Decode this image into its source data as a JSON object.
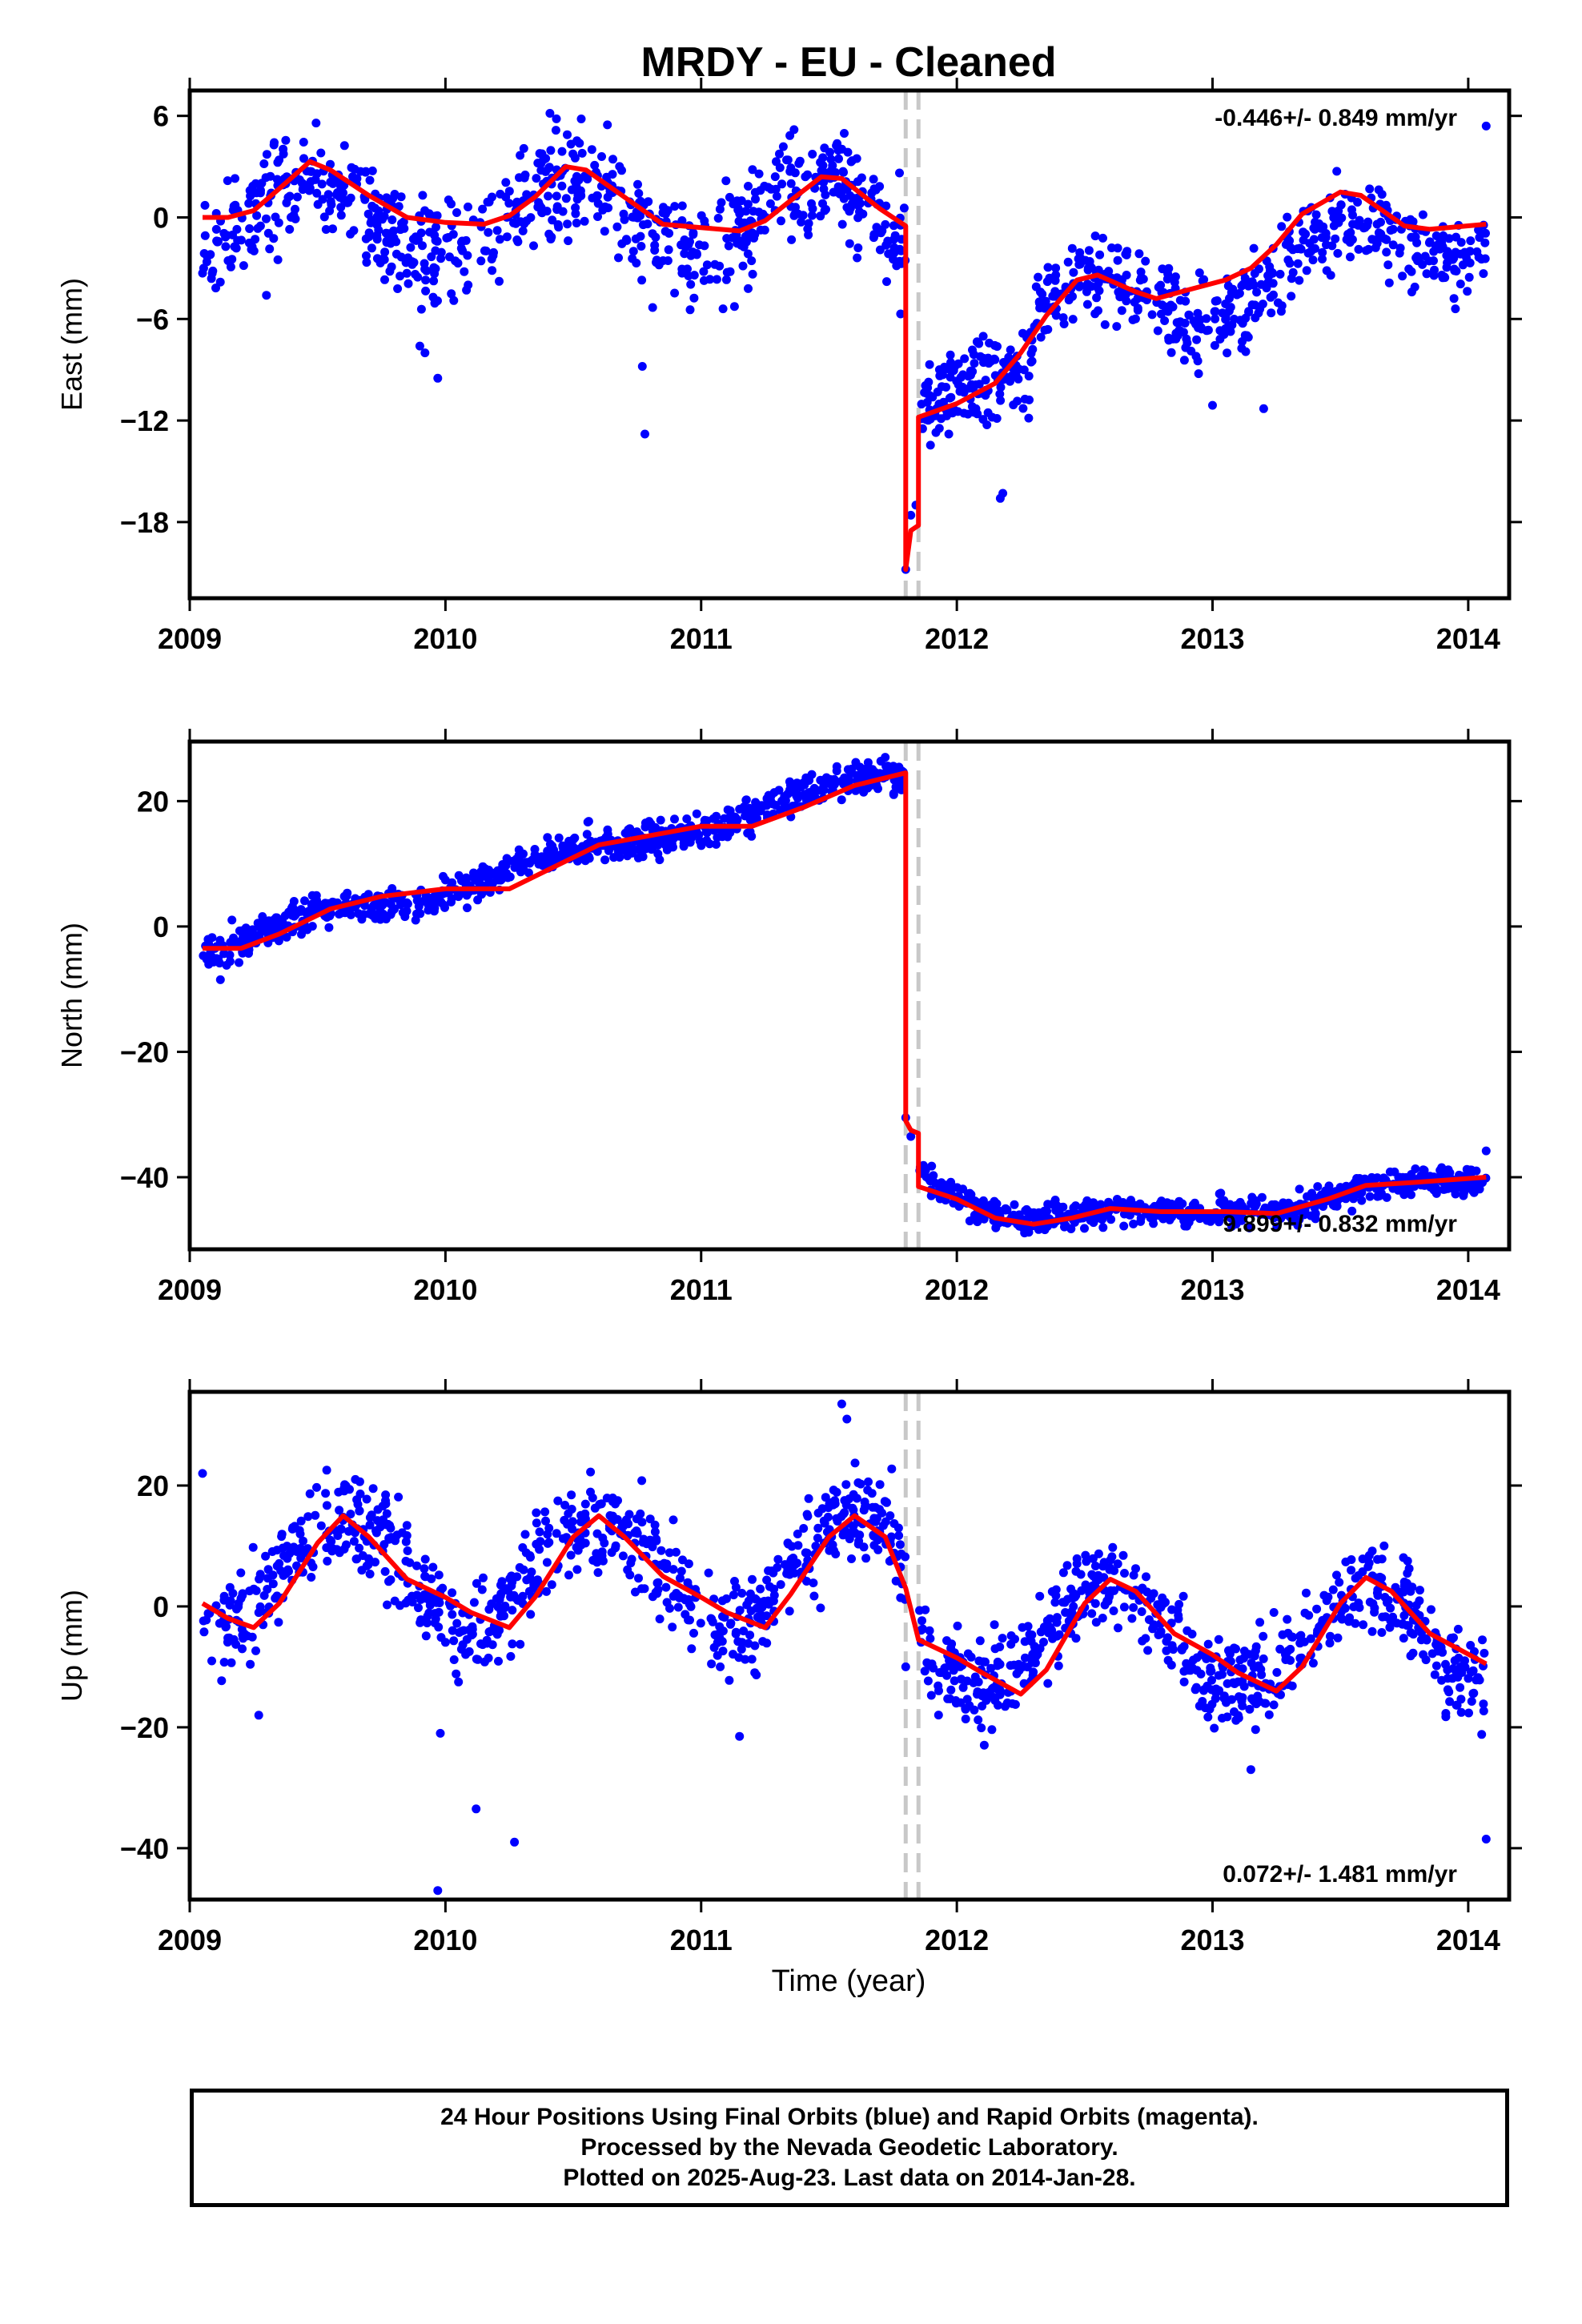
{
  "title": "MRDY  - EU - Cleaned",
  "colors": {
    "final_orbits": "#0000ff",
    "model": "#ff0000",
    "offset_marker": "#c8c8c8",
    "frame": "#000000"
  },
  "xaxis": {
    "label": "Time (year)",
    "range": [
      2009.0,
      2014.16
    ],
    "ticks": [
      2009,
      2010,
      2011,
      2012,
      2013,
      2014
    ]
  },
  "offsets": [
    2011.8,
    2011.85
  ],
  "chart_data": [
    {
      "type": "scatter",
      "name": "east",
      "ylabel": "East (mm)",
      "ylim": [
        -22.5,
        7.5
      ],
      "yticks": [
        6,
        0,
        -6,
        -12,
        -18
      ],
      "rate": "-0.446+/- 0.849 mm/yr",
      "rate_position": "top-right",
      "model": [
        [
          2009.05,
          0
        ],
        [
          2009.15,
          0
        ],
        [
          2009.25,
          0.4
        ],
        [
          2009.35,
          1.7
        ],
        [
          2009.47,
          3.3
        ],
        [
          2009.55,
          2.8
        ],
        [
          2009.7,
          1.3
        ],
        [
          2009.85,
          0
        ],
        [
          2010.0,
          -0.3
        ],
        [
          2010.15,
          -0.4
        ],
        [
          2010.25,
          0.1
        ],
        [
          2010.35,
          1.2
        ],
        [
          2010.47,
          3.0
        ],
        [
          2010.55,
          2.8
        ],
        [
          2010.7,
          1.2
        ],
        [
          2010.85,
          -0.4
        ],
        [
          2011.0,
          -0.6
        ],
        [
          2011.15,
          -0.8
        ],
        [
          2011.25,
          -0.2
        ],
        [
          2011.35,
          1.0
        ],
        [
          2011.47,
          2.4
        ],
        [
          2011.55,
          2.3
        ],
        [
          2011.7,
          0.5
        ],
        [
          2011.8,
          -0.5
        ],
        [
          2011.8,
          -20.8
        ],
        [
          2011.82,
          -18.5
        ],
        [
          2011.85,
          -18.2
        ],
        [
          2011.85,
          -11.8
        ],
        [
          2012.0,
          -11.0
        ],
        [
          2012.15,
          -9.8
        ],
        [
          2012.25,
          -8.0
        ],
        [
          2012.35,
          -5.8
        ],
        [
          2012.47,
          -3.7
        ],
        [
          2012.55,
          -3.4
        ],
        [
          2012.7,
          -4.4
        ],
        [
          2012.78,
          -4.8
        ],
        [
          2012.9,
          -4.3
        ],
        [
          2013.05,
          -3.7
        ],
        [
          2013.15,
          -3.0
        ],
        [
          2013.25,
          -1.6
        ],
        [
          2013.35,
          0.2
        ],
        [
          2013.5,
          1.5
        ],
        [
          2013.58,
          1.3
        ],
        [
          2013.75,
          -0.5
        ],
        [
          2013.85,
          -0.7
        ],
        [
          2014.07,
          -0.4
        ]
      ],
      "segments": [
        {
          "t0": 2009.05,
          "t1": 2011.8,
          "level": 0.0,
          "amp": 2.2,
          "phase": 2009.47,
          "noise": 1.6,
          "n": 760
        },
        {
          "t0": 2011.85,
          "t1": 2012.3,
          "trend": [
            -11.2,
            -8.6
          ],
          "amp": 0,
          "phase": 2012.5,
          "noise": 1.3,
          "n": 150
        },
        {
          "t0": 2012.3,
          "t1": 2014.07,
          "trend": [
            -6.4,
            -0.3
          ],
          "amp": 2.0,
          "phase": 2012.5,
          "noise": 1.2,
          "n": 470
        }
      ],
      "outliers": [
        [
          2009.3,
          -4.6
        ],
        [
          2009.9,
          -7.6
        ],
        [
          2009.92,
          -8.0
        ],
        [
          2009.97,
          -9.5
        ],
        [
          2010.77,
          -8.8
        ],
        [
          2010.78,
          -12.8
        ],
        [
          2011.78,
          -5.7
        ],
        [
          2011.8,
          -20.8
        ],
        [
          2011.82,
          -17.6
        ],
        [
          2011.84,
          -17.0
        ],
        [
          2012.18,
          -16.3
        ],
        [
          2012.17,
          -16.6
        ],
        [
          2013.0,
          -11.1
        ],
        [
          2013.2,
          -11.3
        ],
        [
          2013.95,
          -5.4
        ],
        [
          2014.07,
          5.4
        ]
      ]
    },
    {
      "type": "scatter",
      "name": "north",
      "ylabel": "North (mm)",
      "ylim": [
        -51.5,
        29.5
      ],
      "yticks": [
        20,
        0,
        -20,
        -40
      ],
      "rate": "9.899+/- 0.832 mm/yr",
      "rate_position": "bottom-right",
      "model": [
        [
          2009.05,
          -3.5
        ],
        [
          2009.2,
          -3.5
        ],
        [
          2009.35,
          -1.2
        ],
        [
          2009.55,
          2.8
        ],
        [
          2009.75,
          4.8
        ],
        [
          2010.0,
          6.0
        ],
        [
          2010.25,
          6.0
        ],
        [
          2010.45,
          10.0
        ],
        [
          2010.6,
          13.0
        ],
        [
          2010.8,
          14.5
        ],
        [
          2011.0,
          16.0
        ],
        [
          2011.2,
          16.0
        ],
        [
          2011.4,
          19.0
        ],
        [
          2011.6,
          22.5
        ],
        [
          2011.8,
          24.5
        ],
        [
          2011.8,
          -31.0
        ],
        [
          2011.82,
          -32.5
        ],
        [
          2011.85,
          -33.0
        ],
        [
          2011.85,
          -41.5
        ],
        [
          2012.0,
          -43.5
        ],
        [
          2012.15,
          -46.5
        ],
        [
          2012.3,
          -47.5
        ],
        [
          2012.45,
          -46.5
        ],
        [
          2012.6,
          -45.0
        ],
        [
          2012.8,
          -45.5
        ],
        [
          2013.05,
          -45.5
        ],
        [
          2013.25,
          -45.8
        ],
        [
          2013.45,
          -43.5
        ],
        [
          2013.6,
          -41.3
        ],
        [
          2013.8,
          -40.8
        ],
        [
          2014.07,
          -40.0
        ]
      ],
      "segments": [
        {
          "t0": 2009.05,
          "t1": 2011.8,
          "trend": [
            -3.5,
            24.5
          ],
          "amp": 1.3,
          "phase": 2009.5,
          "noise": 1.3,
          "n": 760
        },
        {
          "t0": 2011.85,
          "t1": 2014.07,
          "curve": [
            [
              2011.85,
              -38.5
            ],
            [
              2012.0,
              -43.5
            ],
            [
              2012.25,
              -47.5
            ],
            [
              2012.55,
              -45.5
            ],
            [
              2013.0,
              -45.5
            ],
            [
              2013.3,
              -45.5
            ],
            [
              2013.6,
              -41.5
            ],
            [
              2014.07,
              -40.5
            ]
          ],
          "amp": 0,
          "phase": 2012.5,
          "noise": 1.1,
          "n": 630
        }
      ],
      "outliers": [
        [
          2009.12,
          -8.5
        ],
        [
          2011.8,
          -30.5
        ],
        [
          2011.82,
          -33.5
        ],
        [
          2014.07,
          -35.8
        ],
        [
          2011.72,
          27.0
        ]
      ]
    },
    {
      "type": "scatter",
      "name": "up",
      "ylabel": "Up (mm)",
      "ylim": [
        -48.5,
        35.5
      ],
      "yticks": [
        20,
        0,
        -20,
        -40
      ],
      "rate": "0.072+/- 1.481 mm/yr",
      "rate_position": "bottom-right",
      "model": [
        [
          2009.05,
          0.5
        ],
        [
          2009.15,
          -2.0
        ],
        [
          2009.25,
          -3.5
        ],
        [
          2009.35,
          0.5
        ],
        [
          2009.5,
          10.5
        ],
        [
          2009.6,
          15.0
        ],
        [
          2009.7,
          11.5
        ],
        [
          2009.85,
          4.5
        ],
        [
          2010.0,
          1.5
        ],
        [
          2010.1,
          -1.0
        ],
        [
          2010.25,
          -3.5
        ],
        [
          2010.35,
          1.5
        ],
        [
          2010.5,
          11.5
        ],
        [
          2010.6,
          15.0
        ],
        [
          2010.7,
          11.5
        ],
        [
          2010.85,
          5.0
        ],
        [
          2011.0,
          1.5
        ],
        [
          2011.1,
          -1.0
        ],
        [
          2011.25,
          -3.5
        ],
        [
          2011.35,
          2.0
        ],
        [
          2011.5,
          11.5
        ],
        [
          2011.6,
          15.0
        ],
        [
          2011.72,
          11.5
        ],
        [
          2011.8,
          3.0
        ],
        [
          2011.85,
          -5.5
        ],
        [
          2012.0,
          -8.5
        ],
        [
          2012.1,
          -11.0
        ],
        [
          2012.25,
          -14.5
        ],
        [
          2012.35,
          -10.5
        ],
        [
          2012.5,
          0.5
        ],
        [
          2012.6,
          4.5
        ],
        [
          2012.7,
          2.5
        ],
        [
          2012.85,
          -4.5
        ],
        [
          2013.0,
          -8.0
        ],
        [
          2013.1,
          -11.0
        ],
        [
          2013.25,
          -14.0
        ],
        [
          2013.35,
          -10.0
        ],
        [
          2013.5,
          0.5
        ],
        [
          2013.6,
          4.8
        ],
        [
          2013.7,
          2.5
        ],
        [
          2013.85,
          -4.5
        ],
        [
          2014.07,
          -9.5
        ]
      ],
      "segments": [
        {
          "t0": 2009.05,
          "t1": 2011.8,
          "level": 5.5,
          "amp": 9.0,
          "phase": 2009.6,
          "noise": 4.0,
          "n": 760
        },
        {
          "t0": 2011.85,
          "t1": 2014.07,
          "level": -4.8,
          "amp": 9.0,
          "phase": 2012.6,
          "noise": 3.8,
          "n": 630
        }
      ],
      "outliers": [
        [
          2009.05,
          22.0
        ],
        [
          2009.27,
          -18.0
        ],
        [
          2009.98,
          -21.0
        ],
        [
          2010.12,
          -33.5
        ],
        [
          2010.27,
          -39.0
        ],
        [
          2009.97,
          -47.0
        ],
        [
          2011.15,
          -21.5
        ],
        [
          2011.55,
          33.5
        ],
        [
          2011.57,
          31.0
        ],
        [
          2013.15,
          -27.0
        ],
        [
          2013.97,
          -10.0
        ],
        [
          2014.07,
          -38.5
        ],
        [
          2011.8,
          -10.0
        ]
      ]
    }
  ],
  "footer": {
    "line1": "24 Hour Positions Using Final Orbits (blue) and Rapid Orbits (magenta).",
    "line2": "Processed by the Nevada Geodetic Laboratory.",
    "line3": "Plotted on 2025-Aug-23. Last data on 2014-Jan-28."
  }
}
